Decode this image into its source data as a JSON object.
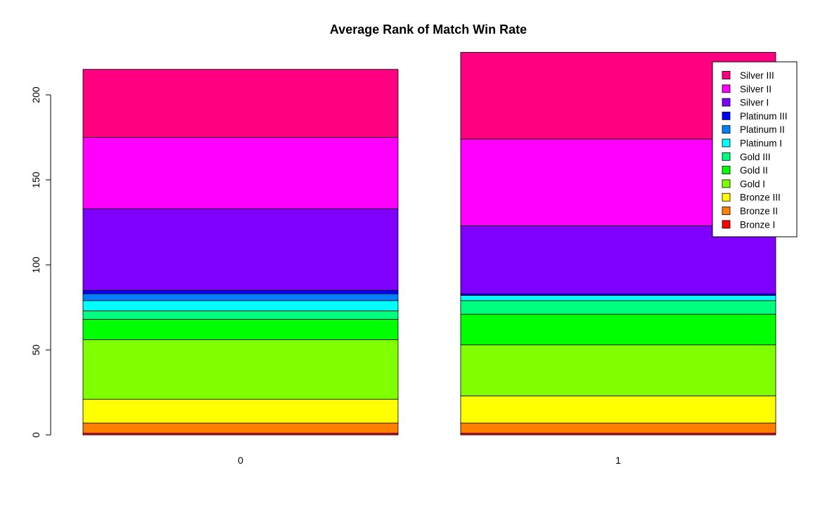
{
  "chart_data": {
    "type": "bar",
    "stacked": true,
    "title": "Average Rank of Match Win Rate",
    "xlabel": "",
    "ylabel": "",
    "categories": [
      "0",
      "1"
    ],
    "ylim": [
      0,
      225
    ],
    "yticks": [
      0,
      50,
      100,
      150,
      200
    ],
    "grid": false,
    "legend_position": "top-right",
    "series": [
      {
        "name": "Bronze I",
        "color": "#FF0000",
        "values": [
          1,
          1
        ]
      },
      {
        "name": "Bronze II",
        "color": "#FF8000",
        "values": [
          6,
          6
        ]
      },
      {
        "name": "Bronze III",
        "color": "#FFFF00",
        "values": [
          14,
          16
        ]
      },
      {
        "name": "Gold I",
        "color": "#80FF00",
        "values": [
          35,
          30
        ]
      },
      {
        "name": "Gold II",
        "color": "#00FF00",
        "values": [
          12,
          18
        ]
      },
      {
        "name": "Gold III",
        "color": "#00FF80",
        "values": [
          5,
          8
        ]
      },
      {
        "name": "Platinum I",
        "color": "#00FFFF",
        "values": [
          6,
          3
        ]
      },
      {
        "name": "Platinum II",
        "color": "#0080FF",
        "values": [
          4,
          0
        ]
      },
      {
        "name": "Platinum III",
        "color": "#0000FF",
        "values": [
          2,
          1
        ]
      },
      {
        "name": "Silver I",
        "color": "#8000FF",
        "values": [
          48,
          40
        ]
      },
      {
        "name": "Silver II",
        "color": "#FF00FF",
        "values": [
          42,
          51
        ]
      },
      {
        "name": "Silver III",
        "color": "#FF0080",
        "values": [
          40,
          51
        ]
      }
    ]
  }
}
